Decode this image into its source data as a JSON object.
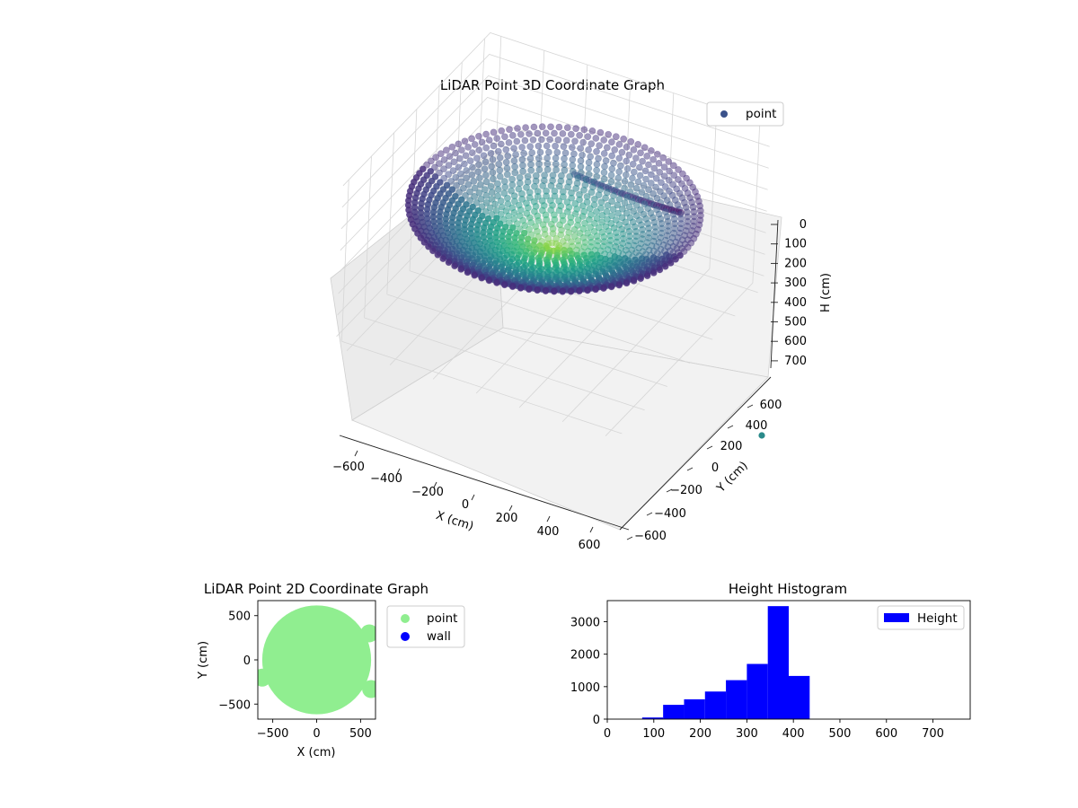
{
  "chart_data": [
    {
      "type": "scatter",
      "projection": "3d",
      "title": "LiDAR Point 3D Coordinate Graph",
      "xlabel": "X (cm)",
      "ylabel": "Y (cm)",
      "zlabel": "H (cm)",
      "xlim": [
        -650,
        650
      ],
      "ylim": [
        -650,
        650
      ],
      "zlim": [
        750,
        0
      ],
      "z_inverted": true,
      "xticks": [
        "−600",
        "−400",
        "−200",
        "0",
        "200",
        "400",
        "600"
      ],
      "yticks": [
        "−600",
        "−400",
        "−200",
        "0",
        "200",
        "400",
        "600"
      ],
      "zticks": [
        "0",
        "100",
        "200",
        "300",
        "400",
        "500",
        "600",
        "700"
      ],
      "colormap": "viridis",
      "legend": {
        "entries": [
          "point"
        ],
        "placement": "top-right",
        "marker_color": "#3b528b"
      },
      "series": [
        {
          "name": "point",
          "description_shape": "dish / cone of points radius ~600 cm, height increasing toward center",
          "rings": [
            {
              "radius": 600,
              "h": 250
            },
            {
              "radius": 500,
              "h": 300
            },
            {
              "radius": 400,
              "h": 340
            },
            {
              "radius": 300,
              "h": 370
            },
            {
              "radius": 200,
              "h": 390
            },
            {
              "radius": 100,
              "h": 410
            },
            {
              "radius": 30,
              "h": 425
            }
          ],
          "outlier": {
            "x": 650,
            "y": 300,
            "h": 700
          },
          "seam": {
            "angle_deg": 45,
            "r_from": 80,
            "r_to": 600,
            "h_from": 100,
            "h_to": 430
          }
        }
      ],
      "grid": true
    },
    {
      "type": "scatter",
      "title": "LiDAR Point 2D Coordinate Graph",
      "xlabel": "X (cm)",
      "ylabel": "Y (cm)",
      "xlim": [
        -670,
        670
      ],
      "ylim": [
        -670,
        670
      ],
      "xticks": [
        -500,
        0,
        500
      ],
      "yticks": [
        -500,
        0,
        500
      ],
      "legend": {
        "placement": "outside-right"
      },
      "series": [
        {
          "name": "point",
          "color": "#90ee90",
          "shape": "disk",
          "center": [
            0,
            0
          ],
          "radius": 620
        },
        {
          "name": "wall",
          "color": "#0000ff",
          "points": []
        }
      ],
      "grid": false
    },
    {
      "type": "bar",
      "subtype": "histogram",
      "title": "Height Histogram",
      "xlim": [
        0,
        780
      ],
      "ylim": [
        0,
        3650
      ],
      "xticks": [
        0,
        100,
        200,
        300,
        400,
        500,
        600,
        700
      ],
      "yticks": [
        0,
        1000,
        2000,
        3000
      ],
      "bins": [
        [
          75,
          120
        ],
        [
          120,
          165
        ],
        [
          165,
          210
        ],
        [
          210,
          255
        ],
        [
          255,
          300
        ],
        [
          300,
          345
        ],
        [
          345,
          390
        ],
        [
          390,
          435
        ]
      ],
      "series": [
        {
          "name": "Height",
          "color": "#0000ff",
          "values": [
            50,
            440,
            610,
            850,
            1200,
            1700,
            3480,
            1330
          ]
        }
      ],
      "legend": {
        "placement": "top-right"
      },
      "grid": false
    }
  ]
}
